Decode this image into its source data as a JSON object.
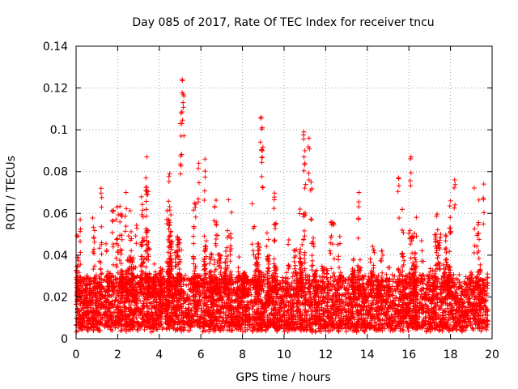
{
  "chart_data": {
    "type": "scatter",
    "title": "Day 085 of 2017, Rate Of TEC Index for receiver tncu",
    "xlabel": "GPS time / hours",
    "ylabel": "ROTI / TECUs",
    "xlim": [
      0,
      20
    ],
    "ylim": [
      0,
      0.14
    ],
    "x_ticks": [
      0,
      2,
      4,
      6,
      8,
      10,
      12,
      14,
      16,
      18,
      20
    ],
    "y_ticks": [
      0,
      0.02,
      0.04,
      0.06,
      0.08,
      0.1,
      0.12,
      0.14
    ],
    "x_tick_labels": [
      "0",
      "2",
      "4",
      "6",
      "8",
      "10",
      "12",
      "14",
      "16",
      "18",
      "20"
    ],
    "y_tick_labels": [
      "0",
      "0.02",
      "0.04",
      "0.06",
      "0.08",
      "0.1",
      "0.12",
      "0.14"
    ],
    "grid": true,
    "marker": "+",
    "color": "#ff0000",
    "x_range_of_data": [
      0,
      19.8
    ],
    "baseline_band": [
      0.005,
      0.03
    ],
    "notable_peaks": [
      {
        "x": 0.2,
        "y": 0.057
      },
      {
        "x": 1.2,
        "y": 0.072
      },
      {
        "x": 2.4,
        "y": 0.07
      },
      {
        "x": 3.4,
        "y": 0.087
      },
      {
        "x": 4.5,
        "y": 0.079
      },
      {
        "x": 5.1,
        "y": 0.124
      },
      {
        "x": 5.15,
        "y": 0.117
      },
      {
        "x": 5.05,
        "y": 0.108
      },
      {
        "x": 5.05,
        "y": 0.097
      },
      {
        "x": 5.9,
        "y": 0.084
      },
      {
        "x": 6.2,
        "y": 0.086
      },
      {
        "x": 8.9,
        "y": 0.106
      },
      {
        "x": 8.95,
        "y": 0.101
      },
      {
        "x": 8.95,
        "y": 0.09
      },
      {
        "x": 10.95,
        "y": 0.099
      },
      {
        "x": 11.2,
        "y": 0.096
      },
      {
        "x": 11.0,
        "y": 0.09
      },
      {
        "x": 11.3,
        "y": 0.075
      },
      {
        "x": 15.5,
        "y": 0.077
      },
      {
        "x": 16.1,
        "y": 0.087
      },
      {
        "x": 18.2,
        "y": 0.076
      },
      {
        "x": 19.6,
        "y": 0.074
      }
    ]
  }
}
